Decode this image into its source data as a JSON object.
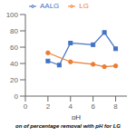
{
  "chart_data": {
    "type": "line",
    "xlabel": "pH",
    "annotations": [
      "on of percentage removal with pH for LG"
    ],
    "series": [
      {
        "name": "AALG",
        "color": "#4472c4",
        "marker": "square",
        "x": [
          2,
          3,
          4,
          6,
          7,
          8
        ],
        "values": [
          43,
          38,
          65,
          63,
          78,
          58
        ]
      },
      {
        "name": "LG",
        "color": "#ed7d31",
        "marker": "circle",
        "x": [
          2,
          4,
          6,
          7,
          8
        ],
        "values": [
          53,
          42,
          39,
          36,
          37
        ]
      }
    ],
    "xlim": [
      0,
      9
    ],
    "xticks": [
      0,
      2,
      4,
      6,
      8
    ],
    "ylim": [
      0,
      100
    ],
    "yticks": [
      0,
      20,
      40,
      60,
      80,
      100
    ],
    "legend": "top",
    "grid": false
  }
}
